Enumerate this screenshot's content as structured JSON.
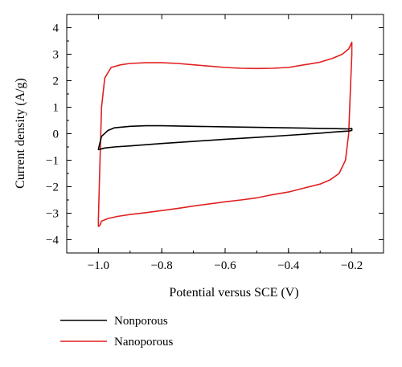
{
  "chart_data": {
    "type": "line",
    "xlabel": "Potential versus SCE (V)",
    "ylabel": "Current density (A/g)",
    "xlim": [
      -1.1,
      -0.1
    ],
    "ylim": [
      -4.5,
      4.5
    ],
    "x_ticks": [
      -1.0,
      -0.8,
      -0.6,
      -0.4,
      -0.2
    ],
    "x_tick_labels": [
      "−1.0",
      "−0.8",
      "−0.6",
      "−0.4",
      "−0.2"
    ],
    "y_ticks": [
      4,
      3,
      2,
      1,
      0,
      -1,
      -2,
      -3,
      -4
    ],
    "y_tick_labels": [
      "4",
      "3",
      "2",
      "1",
      "0",
      "−1",
      "−2",
      "−3",
      "−4"
    ],
    "grid": false,
    "legend_position": "below",
    "series": [
      {
        "name": "Nonporous",
        "color": "#000000",
        "x": [
          -1.0,
          -0.99,
          -0.97,
          -0.95,
          -0.9,
          -0.85,
          -0.8,
          -0.7,
          -0.6,
          -0.5,
          -0.4,
          -0.3,
          -0.25,
          -0.21,
          -0.2,
          -0.2,
          -0.21,
          -0.25,
          -0.3,
          -0.4,
          -0.5,
          -0.6,
          -0.7,
          -0.8,
          -0.9,
          -0.95,
          -0.98,
          -0.99,
          -1.0,
          -1.0
        ],
        "y": [
          -0.58,
          -0.1,
          0.12,
          0.22,
          0.28,
          0.3,
          0.3,
          0.28,
          0.26,
          0.24,
          0.22,
          0.2,
          0.19,
          0.18,
          0.2,
          0.12,
          0.1,
          0.07,
          0.02,
          -0.06,
          -0.14,
          -0.21,
          -0.29,
          -0.37,
          -0.46,
          -0.5,
          -0.54,
          -0.57,
          -0.6,
          -0.58
        ]
      },
      {
        "name": "Nanoporous",
        "color": "#e02020",
        "x": [
          -1.0,
          -0.995,
          -0.99,
          -0.98,
          -0.96,
          -0.93,
          -0.9,
          -0.85,
          -0.8,
          -0.75,
          -0.7,
          -0.65,
          -0.6,
          -0.55,
          -0.5,
          -0.45,
          -0.4,
          -0.35,
          -0.3,
          -0.26,
          -0.23,
          -0.21,
          -0.2,
          -0.2,
          -0.205,
          -0.21,
          -0.22,
          -0.24,
          -0.27,
          -0.3,
          -0.35,
          -0.4,
          -0.45,
          -0.5,
          -0.55,
          -0.6,
          -0.65,
          -0.7,
          -0.75,
          -0.8,
          -0.85,
          -0.9,
          -0.94,
          -0.97,
          -0.99,
          -0.995,
          -1.0,
          -1.0
        ],
        "y": [
          -3.2,
          -1.0,
          1.0,
          2.1,
          2.5,
          2.6,
          2.65,
          2.68,
          2.68,
          2.65,
          2.6,
          2.55,
          2.5,
          2.47,
          2.46,
          2.47,
          2.5,
          2.6,
          2.7,
          2.85,
          3.0,
          3.2,
          3.45,
          3.0,
          1.5,
          0.0,
          -1.0,
          -1.5,
          -1.75,
          -1.9,
          -2.05,
          -2.2,
          -2.3,
          -2.42,
          -2.5,
          -2.57,
          -2.65,
          -2.73,
          -2.82,
          -2.9,
          -2.98,
          -3.05,
          -3.12,
          -3.2,
          -3.3,
          -3.45,
          -3.5,
          -3.2
        ]
      }
    ]
  }
}
